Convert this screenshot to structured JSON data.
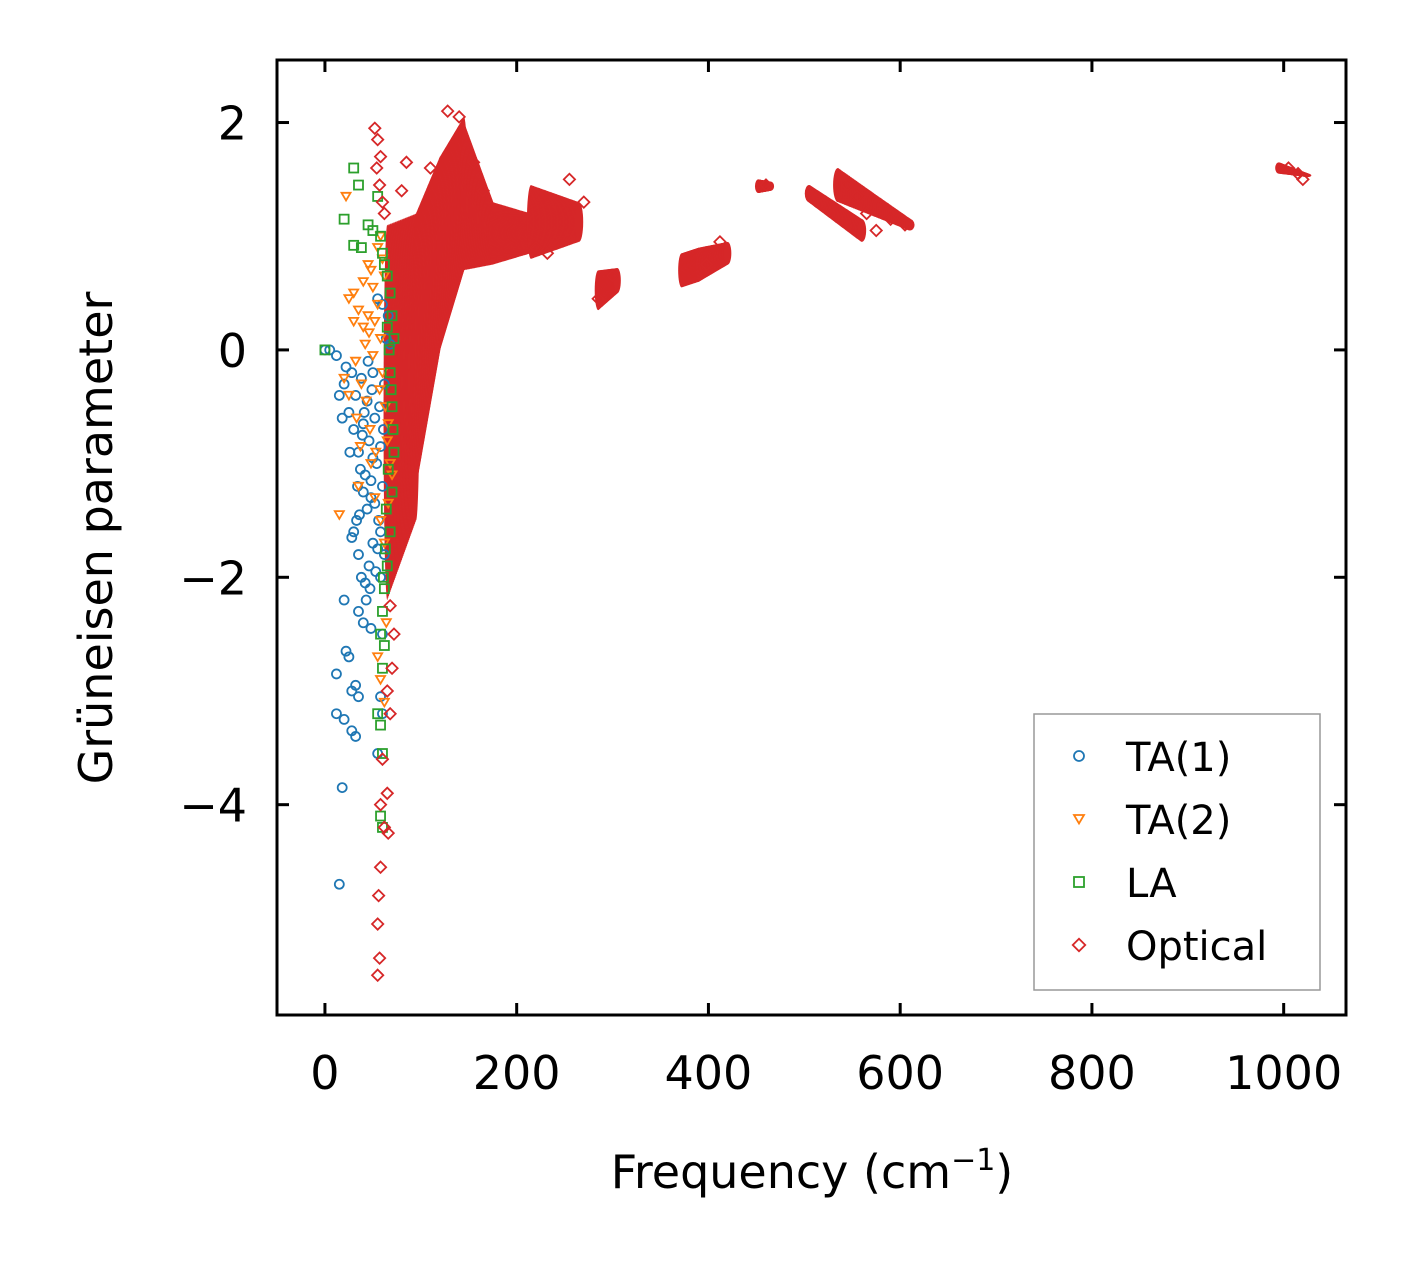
{
  "chart_data": {
    "type": "scatter",
    "title": "",
    "xlabel": "Frequency (cm",
    "xlabel_sup": "−1",
    "xlabel_suffix": ")",
    "ylabel": "Grüneisen parameter",
    "xlim": [
      -50,
      1065
    ],
    "ylim": [
      -5.85,
      2.55
    ],
    "xticks": [
      0,
      200,
      400,
      600,
      800,
      1000
    ],
    "xtick_labels": [
      "0",
      "200",
      "400",
      "600",
      "800",
      "1000"
    ],
    "yticks": [
      2,
      0,
      -2,
      -4
    ],
    "ytick_labels": [
      "2",
      "0",
      "−2",
      "−4"
    ],
    "legend": {
      "position": "lower-right"
    },
    "series": [
      {
        "name": "TA(1)",
        "marker": "circle",
        "color": "#1f77b4",
        "points": [
          [
            0,
            0
          ],
          [
            5,
            0
          ],
          [
            12,
            -0.05
          ],
          [
            15,
            -0.4
          ],
          [
            18,
            -0.6
          ],
          [
            20,
            -0.3
          ],
          [
            22,
            -0.15
          ],
          [
            25,
            -0.55
          ],
          [
            28,
            -0.2
          ],
          [
            30,
            -0.7
          ],
          [
            32,
            -0.4
          ],
          [
            35,
            -0.9
          ],
          [
            38,
            -0.25
          ],
          [
            40,
            -0.65
          ],
          [
            42,
            -1.1
          ],
          [
            44,
            -0.45
          ],
          [
            46,
            -0.8
          ],
          [
            48,
            -1.3
          ],
          [
            50,
            -0.95
          ],
          [
            52,
            -0.6
          ],
          [
            54,
            -1.0
          ],
          [
            56,
            -1.5
          ],
          [
            58,
            -0.85
          ],
          [
            60,
            -1.2
          ],
          [
            62,
            -0.3
          ],
          [
            64,
            0.1
          ],
          [
            66,
            0.3
          ],
          [
            68,
            0.05
          ],
          [
            55,
            0.45
          ],
          [
            60,
            0.4
          ],
          [
            50,
            -0.2
          ],
          [
            45,
            -0.1
          ],
          [
            30,
            -1.6
          ],
          [
            28,
            -1.65
          ],
          [
            35,
            -1.8
          ],
          [
            38,
            -2.0
          ],
          [
            42,
            -2.05
          ],
          [
            46,
            -1.9
          ],
          [
            50,
            -1.7
          ],
          [
            55,
            -1.75
          ],
          [
            58,
            -2.0
          ],
          [
            20,
            -2.2
          ],
          [
            35,
            -2.3
          ],
          [
            40,
            -2.4
          ],
          [
            48,
            -2.45
          ],
          [
            60,
            -2.5
          ],
          [
            22,
            -2.65
          ],
          [
            25,
            -2.7
          ],
          [
            12,
            -2.85
          ],
          [
            28,
            -3.0
          ],
          [
            32,
            -2.95
          ],
          [
            35,
            -3.05
          ],
          [
            12,
            -3.2
          ],
          [
            20,
            -3.25
          ],
          [
            28,
            -3.35
          ],
          [
            32,
            -3.4
          ],
          [
            58,
            -3.05
          ],
          [
            60,
            -3.2
          ],
          [
            55,
            -3.55
          ],
          [
            18,
            -3.85
          ],
          [
            15,
            -4.7
          ],
          [
            44,
            -1.4
          ],
          [
            52,
            -1.35
          ],
          [
            48,
            -1.15
          ],
          [
            40,
            -1.25
          ],
          [
            36,
            -1.45
          ],
          [
            33,
            -1.5
          ],
          [
            58,
            -1.6
          ],
          [
            62,
            -1.8
          ],
          [
            53,
            -1.95
          ],
          [
            47,
            -2.1
          ],
          [
            43,
            -2.2
          ],
          [
            39,
            -0.75
          ],
          [
            57,
            -0.5
          ],
          [
            61,
            -0.7
          ],
          [
            49,
            -0.35
          ],
          [
            41,
            -0.55
          ],
          [
            37,
            -1.05
          ],
          [
            34,
            -1.2
          ],
          [
            26,
            -0.9
          ]
        ]
      },
      {
        "name": "TA(2)",
        "marker": "triangle-down",
        "color": "#ff7f0e",
        "points": [
          [
            22,
            1.35
          ],
          [
            25,
            0.45
          ],
          [
            30,
            0.5
          ],
          [
            35,
            0.35
          ],
          [
            40,
            0.6
          ],
          [
            45,
            0.75
          ],
          [
            48,
            0.7
          ],
          [
            50,
            0.55
          ],
          [
            55,
            0.9
          ],
          [
            58,
            1.0
          ],
          [
            60,
            0.8
          ],
          [
            62,
            0.65
          ],
          [
            45,
            0.3
          ],
          [
            40,
            0.2
          ],
          [
            30,
            0.25
          ],
          [
            20,
            -0.25
          ],
          [
            25,
            -0.4
          ],
          [
            32,
            -0.1
          ],
          [
            38,
            -0.3
          ],
          [
            42,
            0.05
          ],
          [
            46,
            0.15
          ],
          [
            50,
            -0.05
          ],
          [
            52,
            0.25
          ],
          [
            55,
            0.4
          ],
          [
            58,
            0.1
          ],
          [
            60,
            -0.2
          ],
          [
            63,
            -0.5
          ],
          [
            65,
            -0.8
          ],
          [
            68,
            -1.0
          ],
          [
            66,
            -0.65
          ],
          [
            15,
            -1.45
          ],
          [
            35,
            -1.2
          ],
          [
            48,
            -1.0
          ],
          [
            52,
            -1.3
          ],
          [
            58,
            -1.5
          ],
          [
            62,
            -1.7
          ],
          [
            66,
            -1.35
          ],
          [
            70,
            -1.1
          ],
          [
            55,
            -2.7
          ],
          [
            58,
            -2.9
          ],
          [
            62,
            -3.1
          ],
          [
            64,
            -2.4
          ],
          [
            33,
            -0.6
          ],
          [
            37,
            -0.85
          ],
          [
            43,
            -0.45
          ],
          [
            47,
            -0.7
          ],
          [
            53,
            -0.9
          ],
          [
            57,
            -0.35
          ]
        ]
      },
      {
        "name": "LA",
        "marker": "square",
        "color": "#2ca02c",
        "points": [
          [
            0,
            0
          ],
          [
            30,
            1.6
          ],
          [
            35,
            1.45
          ],
          [
            20,
            1.15
          ],
          [
            30,
            0.92
          ],
          [
            38,
            0.9
          ],
          [
            45,
            1.1
          ],
          [
            50,
            1.05
          ],
          [
            55,
            1.35
          ],
          [
            58,
            1.0
          ],
          [
            60,
            0.85
          ],
          [
            62,
            0.75
          ],
          [
            65,
            0.65
          ],
          [
            68,
            0.5
          ],
          [
            70,
            0.3
          ],
          [
            72,
            0.1
          ],
          [
            68,
            -0.2
          ],
          [
            70,
            -0.5
          ],
          [
            72,
            -0.9
          ],
          [
            70,
            -1.25
          ],
          [
            68,
            -1.6
          ],
          [
            65,
            -1.9
          ],
          [
            62,
            -2.1
          ],
          [
            60,
            -2.3
          ],
          [
            58,
            -2.5
          ],
          [
            62,
            -2.6
          ],
          [
            60,
            -2.8
          ],
          [
            55,
            -3.2
          ],
          [
            58,
            -3.3
          ],
          [
            60,
            -3.55
          ],
          [
            58,
            -4.1
          ],
          [
            60,
            -4.2
          ],
          [
            65,
            0.2
          ],
          [
            67,
            0.0
          ],
          [
            69,
            -0.35
          ],
          [
            71,
            -0.7
          ],
          [
            66,
            -1.05
          ],
          [
            64,
            -1.4
          ],
          [
            63,
            -1.75
          ],
          [
            61,
            -2.0
          ]
        ]
      },
      {
        "name": "Optical",
        "marker": "diamond",
        "color": "#d62728",
        "points": [
          [
            52,
            1.95
          ],
          [
            55,
            1.85
          ],
          [
            58,
            1.7
          ],
          [
            54,
            1.6
          ],
          [
            57,
            1.45
          ],
          [
            60,
            1.3
          ],
          [
            62,
            1.2
          ],
          [
            85,
            1.65
          ],
          [
            80,
            1.4
          ],
          [
            110,
            1.6
          ],
          [
            128,
            2.1
          ],
          [
            140,
            2.05
          ],
          [
            155,
            1.65
          ],
          [
            165,
            1.4
          ],
          [
            220,
            0.9
          ],
          [
            232,
            0.85
          ],
          [
            255,
            1.5
          ],
          [
            270,
            1.3
          ],
          [
            60,
            -3.6
          ],
          [
            65,
            -3.9
          ],
          [
            58,
            -4.0
          ],
          [
            62,
            -4.2
          ],
          [
            66,
            -4.25
          ],
          [
            58,
            -4.55
          ],
          [
            56,
            -4.8
          ],
          [
            55,
            -5.05
          ],
          [
            57,
            -5.35
          ],
          [
            55,
            -5.5
          ],
          [
            65,
            -3.0
          ],
          [
            68,
            -3.2
          ],
          [
            70,
            -2.8
          ],
          [
            72,
            -2.5
          ],
          [
            68,
            -2.25
          ],
          [
            412,
            0.95
          ],
          [
            398,
            0.75
          ],
          [
            1005,
            1.6
          ],
          [
            1015,
            1.55
          ],
          [
            1020,
            1.5
          ],
          [
            545,
            1.45
          ],
          [
            555,
            1.35
          ],
          [
            565,
            1.2
          ],
          [
            575,
            1.05
          ],
          [
            590,
            1.15
          ],
          [
            605,
            1.1
          ],
          [
            460,
            1.45
          ],
          [
            300,
            0.65
          ],
          [
            285,
            0.45
          ]
        ]
      }
    ]
  }
}
